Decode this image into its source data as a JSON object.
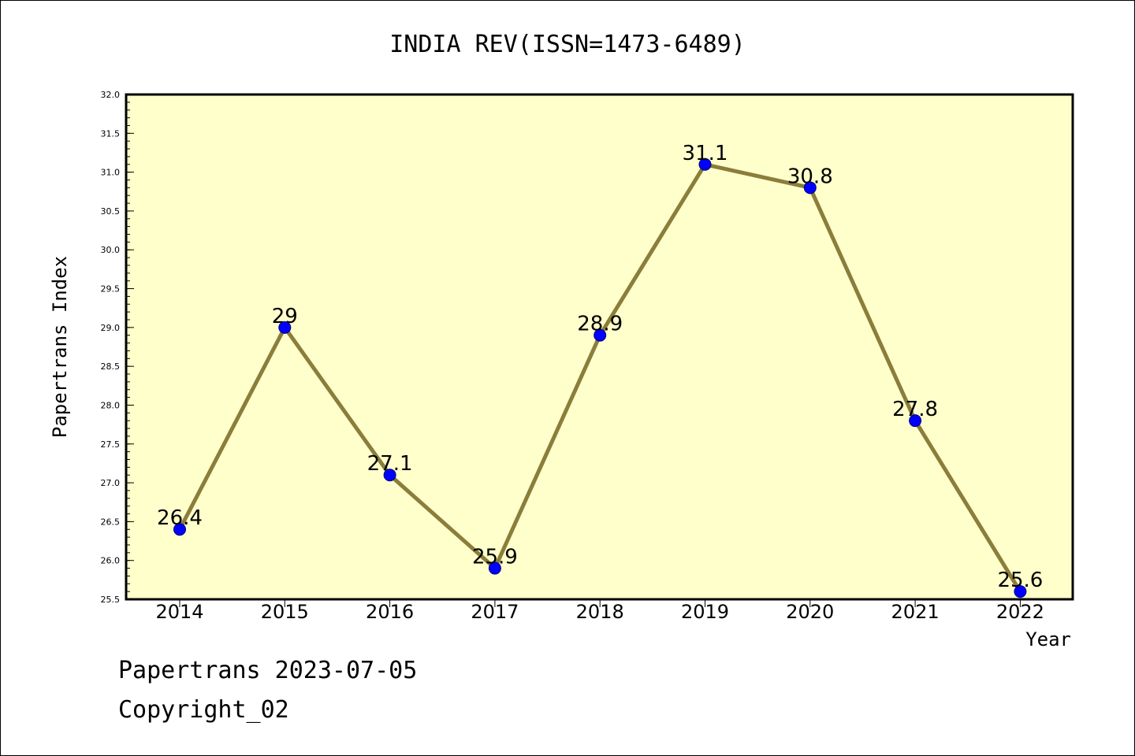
{
  "footer": {
    "line1": "Papertrans 2023-07-05",
    "line2": "Copyright_02"
  },
  "colors": {
    "plot_bg": "#ffffcc",
    "line": "#8b7d3a",
    "marker": "#0000ff"
  },
  "chart_data": {
    "type": "line",
    "title": "INDIA REV(ISSN=1473-6489)",
    "xlabel": "Year",
    "ylabel": "Papertrans Index",
    "categories": [
      "2014",
      "2015",
      "2016",
      "2017",
      "2018",
      "2019",
      "2020",
      "2021",
      "2022"
    ],
    "series": [
      {
        "values": [
          26.4,
          29,
          27.1,
          25.9,
          28.9,
          31.1,
          30.8,
          27.8,
          25.6
        ],
        "labels": [
          "26.4",
          "29",
          "27.1",
          "25.9",
          "28.9",
          "31.1",
          "30.8",
          "27.8",
          "25.6"
        ]
      }
    ],
    "ylim": [
      25.5,
      32.0
    ],
    "yticks": [
      "25.5",
      "26.0",
      "26.5",
      "27.0",
      "27.5",
      "28.0",
      "28.5",
      "29.0",
      "29.5",
      "30.0",
      "30.5",
      "31.0",
      "31.5",
      "32.0"
    ],
    "grid": false,
    "legend": "none"
  }
}
